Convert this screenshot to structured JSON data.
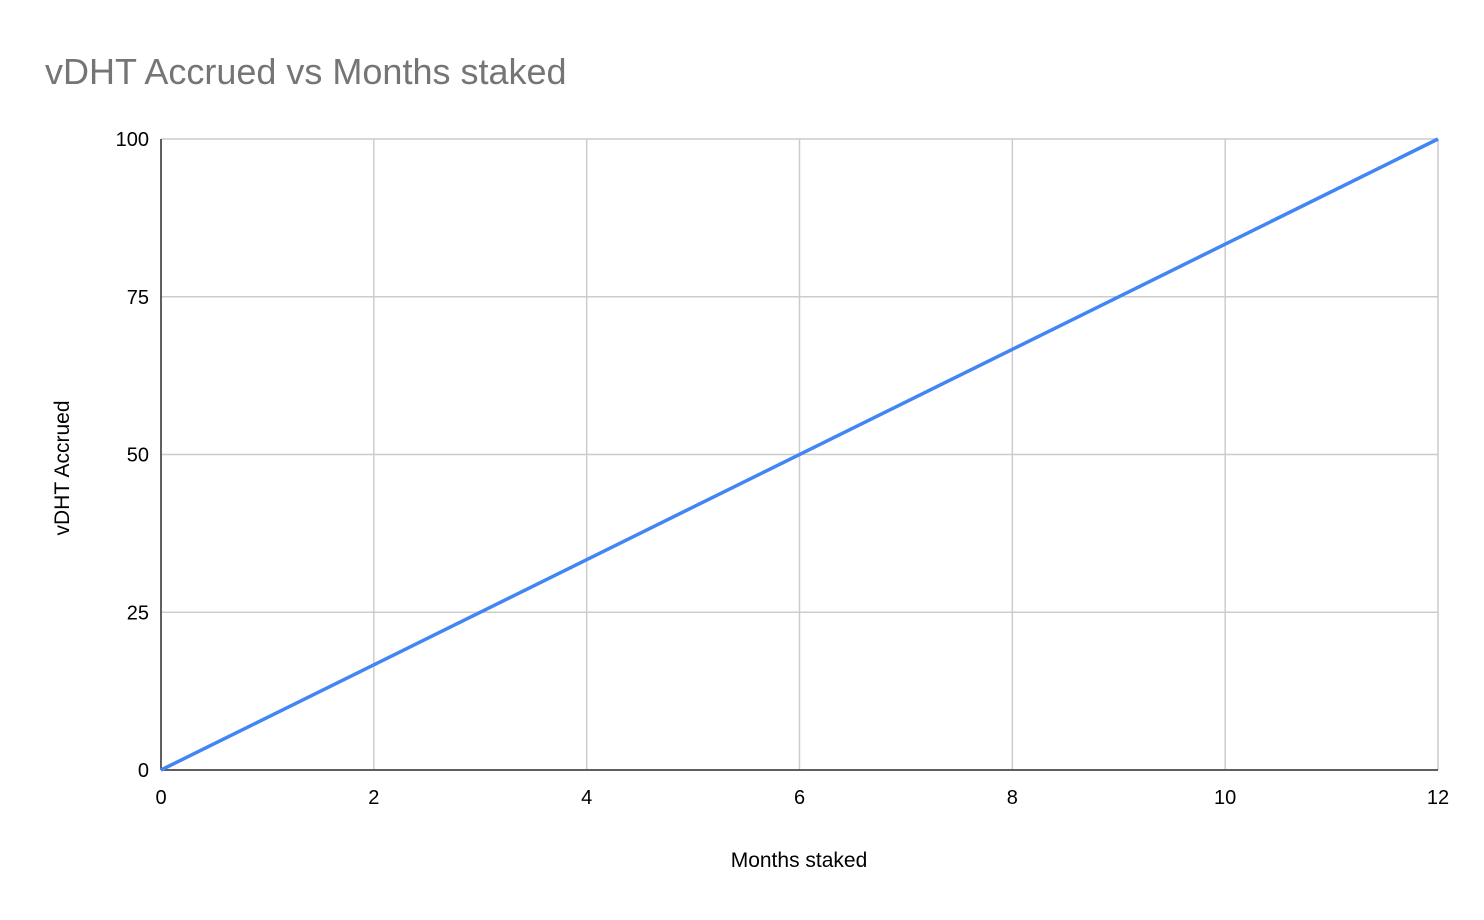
{
  "chart_data": {
    "type": "line",
    "title": "vDHT Accrued vs Months staked",
    "x_label": "Months staked",
    "y_label": "vDHT Accrued",
    "x": [
      0,
      12
    ],
    "series": [
      {
        "name": "vDHT Accrued",
        "color": "#4285f4",
        "values": [
          0,
          100
        ]
      }
    ],
    "xlim": [
      0,
      12
    ],
    "xticks": [
      0,
      2,
      4,
      6,
      8,
      10,
      12
    ],
    "ylim": [
      0,
      100
    ],
    "yticks": [
      0,
      25,
      50,
      75,
      100
    ],
    "grid": true
  }
}
